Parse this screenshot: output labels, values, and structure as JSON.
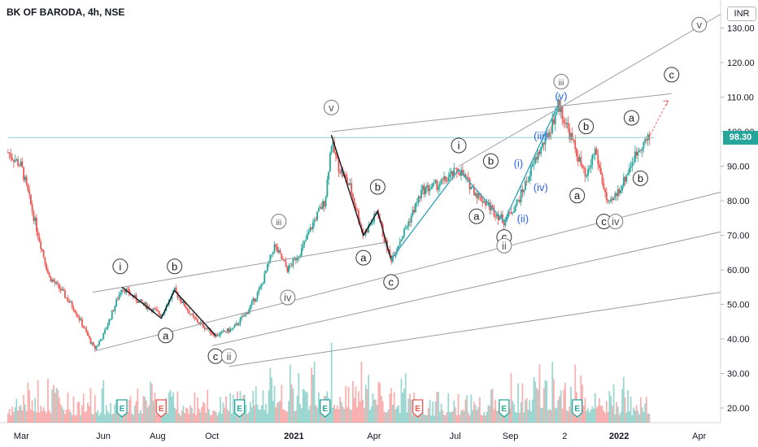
{
  "header": {
    "title": "BK OF BARODA, 4h, NSE",
    "currency": "INR"
  },
  "last_price": "98.30",
  "colors": {
    "up": "#26a69a",
    "down": "#ef5350",
    "wave": "#3aa6b9",
    "label_blue": "#2962ff",
    "channel": "#9a9ca3",
    "arrow": "#f06c6c"
  },
  "chart_data": {
    "type": "candlestick",
    "title": "BK OF BARODA, 4h, NSE",
    "x_ticks": [
      "Mar",
      "Jun",
      "Aug",
      "Oct",
      "2021",
      "Apr",
      "Jul",
      "Sep",
      "2",
      "2022",
      "Apr"
    ],
    "y_ticks": [
      "130.00",
      "120.00",
      "110.00",
      "100.00",
      "90.00",
      "80.00",
      "70.00",
      "60.00",
      "50.00",
      "40.00",
      "30.00",
      "20.00"
    ],
    "ylim": [
      17,
      135
    ],
    "price_path": [
      [
        "2020-02-15",
        94
      ],
      [
        "2020-03-01",
        90
      ],
      [
        "2020-03-20",
        70
      ],
      [
        "2020-04-01",
        58
      ],
      [
        "2020-04-15",
        54
      ],
      [
        "2020-05-01",
        48
      ],
      [
        "2020-05-22",
        37
      ],
      [
        "2020-06-01",
        41
      ],
      [
        "2020-06-10",
        47
      ],
      [
        "2020-06-22",
        55
      ],
      [
        "2020-07-10",
        51
      ],
      [
        "2020-08-05",
        47
      ],
      [
        "2020-08-20",
        54
      ],
      [
        "2020-09-10",
        46
      ],
      [
        "2020-10-05",
        41
      ],
      [
        "2020-10-25",
        43
      ],
      [
        "2020-11-10",
        48
      ],
      [
        "2020-11-25",
        55
      ],
      [
        "2020-12-10",
        67
      ],
      [
        "2020-12-25",
        60
      ],
      [
        "2021-01-10",
        66
      ],
      [
        "2021-01-25",
        75
      ],
      [
        "2021-02-05",
        80
      ],
      [
        "2021-02-12",
        97
      ],
      [
        "2021-02-20",
        90
      ],
      [
        "2021-03-05",
        84
      ],
      [
        "2021-03-20",
        70
      ],
      [
        "2021-04-01",
        75
      ],
      [
        "2021-04-05",
        77
      ],
      [
        "2021-04-12",
        69
      ],
      [
        "2021-04-20",
        63
      ],
      [
        "2021-05-10",
        74
      ],
      [
        "2021-05-25",
        83
      ],
      [
        "2021-06-15",
        85
      ],
      [
        "2021-07-05",
        89
      ],
      [
        "2021-07-25",
        82
      ],
      [
        "2021-08-10",
        78
      ],
      [
        "2021-08-25",
        74
      ],
      [
        "2021-09-10",
        80
      ],
      [
        "2021-10-01",
        93
      ],
      [
        "2021-10-15",
        100
      ],
      [
        "2021-10-25",
        108
      ],
      [
        "2021-11-10",
        97
      ],
      [
        "2021-11-25",
        86
      ],
      [
        "2021-12-05",
        95
      ],
      [
        "2021-12-20",
        78
      ],
      [
        "2022-01-05",
        85
      ],
      [
        "2022-01-15",
        91
      ],
      [
        "2022-01-25",
        96
      ],
      [
        "2022-02-05",
        98.3
      ]
    ],
    "volume_profile": [
      [
        "2020-02-15",
        0.25
      ],
      [
        "2020-03-20",
        0.45
      ],
      [
        "2020-05-01",
        0.3
      ],
      [
        "2020-06-20",
        0.35
      ],
      [
        "2020-08-01",
        0.3
      ],
      [
        "2020-10-01",
        0.3
      ],
      [
        "2020-12-01",
        0.4
      ],
      [
        "2021-02-15",
        0.6
      ],
      [
        "2021-04-01",
        0.45
      ],
      [
        "2021-06-01",
        0.3
      ],
      [
        "2021-08-01",
        0.3
      ],
      [
        "2021-10-20",
        0.55
      ],
      [
        "2021-12-10",
        0.4
      ],
      [
        "2022-02-05",
        0.25
      ]
    ],
    "trendlines": [
      {
        "name": "lower-channel-1",
        "points": [
          [
            "2020-05-22",
            36.5
          ],
          [
            "2022-04-25",
            82.5
          ]
        ]
      },
      {
        "name": "lower-channel-2",
        "points": [
          [
            "2020-10-01",
            38
          ],
          [
            "2022-04-25",
            71
          ]
        ]
      },
      {
        "name": "lower-channel-3",
        "points": [
          [
            "2020-10-20",
            32
          ],
          [
            "2022-04-25",
            53.5
          ]
        ]
      },
      {
        "name": "upper-channel-1",
        "points": [
          [
            "2020-05-20",
            53.5
          ],
          [
            "2021-04-15",
            68
          ]
        ]
      },
      {
        "name": "upper-channel-2",
        "points": [
          [
            "2021-02-12",
            100
          ],
          [
            "2022-03-01",
            111
          ]
        ]
      },
      {
        "name": "upper-channel-3",
        "points": [
          [
            "2021-07-05",
            90
          ],
          [
            "2022-04-25",
            134
          ]
        ]
      },
      {
        "name": "horizontal-price",
        "points": [
          [
            "2020-02-15",
            98.3
          ],
          [
            "2022-02-10",
            98.3
          ]
        ]
      }
    ],
    "wave_paths": [
      {
        "color": "#131722",
        "points": [
          [
            "2020-06-22",
            55
          ],
          [
            "2020-08-05",
            46
          ],
          [
            "2020-08-20",
            54
          ],
          [
            "2020-10-05",
            41
          ]
        ]
      },
      {
        "color": "#131722",
        "points": [
          [
            "2021-02-12",
            99
          ],
          [
            "2021-03-20",
            70
          ],
          [
            "2021-04-05",
            77
          ],
          [
            "2021-04-20",
            63
          ]
        ]
      },
      {
        "color": "#3aa6b9",
        "points": [
          [
            "2021-04-20",
            63
          ],
          [
            "2021-07-05",
            89
          ],
          [
            "2021-08-25",
            74
          ],
          [
            "2021-10-25",
            108
          ]
        ]
      }
    ],
    "labels": [
      {
        "t": "i",
        "x": "2020-06-20",
        "y": 61,
        "style": "circle",
        "color": "#131722"
      },
      {
        "t": "b",
        "x": "2020-08-20",
        "y": 61,
        "style": "circle",
        "color": "#131722"
      },
      {
        "t": "a",
        "x": "2020-08-10",
        "y": 41,
        "style": "circle",
        "color": "#131722"
      },
      {
        "t": "c",
        "x": "2020-10-05",
        "y": 35,
        "style": "circle",
        "color": "#131722"
      },
      {
        "t": "ii",
        "x": "2020-10-20",
        "y": 35,
        "style": "circle-gray",
        "color": "#555"
      },
      {
        "t": "iii",
        "x": "2020-12-15",
        "y": 74,
        "style": "circle-gray",
        "color": "#555"
      },
      {
        "t": "iv",
        "x": "2020-12-25",
        "y": 52,
        "style": "circle-gray",
        "color": "#555"
      },
      {
        "t": "v",
        "x": "2021-02-12",
        "y": 107,
        "style": "circle-gray",
        "color": "#555"
      },
      {
        "t": "b",
        "x": "2021-04-05",
        "y": 84,
        "style": "circle",
        "color": "#131722"
      },
      {
        "t": "a",
        "x": "2021-03-20",
        "y": 63.5,
        "style": "circle",
        "color": "#131722"
      },
      {
        "t": "c",
        "x": "2021-04-20",
        "y": 56.5,
        "style": "circle",
        "color": "#131722"
      },
      {
        "t": "i",
        "x": "2021-07-05",
        "y": 96,
        "style": "circle",
        "color": "#131722"
      },
      {
        "t": "b",
        "x": "2021-08-10",
        "y": 91.5,
        "style": "circle",
        "color": "#131722"
      },
      {
        "t": "a",
        "x": "2021-07-25",
        "y": 75.5,
        "style": "circle",
        "color": "#131722"
      },
      {
        "t": "c",
        "x": "2021-08-25",
        "y": 69.5,
        "style": "circle",
        "color": "#131722"
      },
      {
        "t": "ii",
        "x": "2021-08-25",
        "y": 67,
        "style": "circle-gray",
        "color": "#555"
      },
      {
        "t": "(i)",
        "x": "2021-09-10",
        "y": 91,
        "style": "text",
        "color": "#2962ff"
      },
      {
        "t": "(ii)",
        "x": "2021-09-15",
        "y": 75,
        "style": "text",
        "color": "#2962ff"
      },
      {
        "t": "(iii)",
        "x": "2021-10-05",
        "y": 99,
        "style": "text",
        "color": "#2962ff"
      },
      {
        "t": "(iv)",
        "x": "2021-10-05",
        "y": 84,
        "style": "text",
        "color": "#2962ff"
      },
      {
        "t": "(v)",
        "x": "2021-10-28",
        "y": 110.5,
        "style": "text",
        "color": "#2962ff"
      },
      {
        "t": "iii",
        "x": "2021-10-28",
        "y": 114.5,
        "style": "circle-gray",
        "color": "#555"
      },
      {
        "t": "b",
        "x": "2021-11-25",
        "y": 101.5,
        "style": "circle",
        "color": "#131722"
      },
      {
        "t": "a",
        "x": "2021-11-15",
        "y": 81.5,
        "style": "circle",
        "color": "#131722"
      },
      {
        "t": "c",
        "x": "2021-12-15",
        "y": 74,
        "style": "circle",
        "color": "#131722"
      },
      {
        "t": "iv",
        "x": "2021-12-28",
        "y": 74,
        "style": "circle-gray",
        "color": "#555"
      },
      {
        "t": "a",
        "x": "2022-01-15",
        "y": 104,
        "style": "circle",
        "color": "#131722"
      },
      {
        "t": "b",
        "x": "2022-01-25",
        "y": 86.5,
        "style": "circle",
        "color": "#131722"
      },
      {
        "t": "c",
        "x": "2022-03-01",
        "y": 116.5,
        "style": "circle",
        "color": "#131722"
      },
      {
        "t": "v",
        "x": "2022-04-01",
        "y": 131,
        "style": "circle-gray",
        "color": "#555"
      }
    ],
    "earnings_markers": [
      {
        "x": "2020-06-22",
        "type": "up"
      },
      {
        "x": "2020-08-05",
        "type": "down"
      },
      {
        "x": "2020-11-01",
        "type": "up"
      },
      {
        "x": "2021-02-05",
        "type": "up"
      },
      {
        "x": "2021-05-20",
        "type": "down"
      },
      {
        "x": "2021-08-25",
        "type": "up"
      },
      {
        "x": "2021-11-15",
        "type": "up"
      }
    ]
  }
}
